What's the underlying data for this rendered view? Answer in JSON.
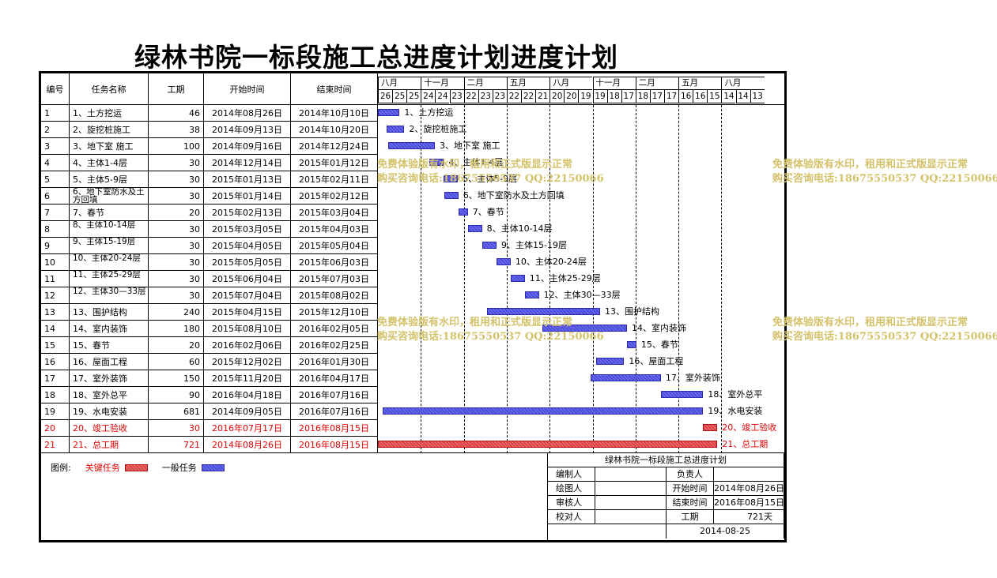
{
  "title": "绿林书院一标段施工总进度计划进度计划",
  "headers": {
    "id": "编号",
    "name": "任务名称",
    "duration": "工期",
    "start": "开始时间",
    "end": "结束时间"
  },
  "months": [
    "八月",
    "十一月",
    "二月",
    "五月",
    "八月",
    "十一月",
    "二月",
    "五月",
    "八月"
  ],
  "days": [
    "26",
    "25",
    "25",
    "24",
    "24",
    "23",
    "22",
    "23",
    "23",
    "22",
    "22",
    "21",
    "20",
    "20",
    "19",
    "19",
    "18",
    "17",
    "18",
    "17",
    "17",
    "16",
    "16",
    "15",
    "14",
    "14",
    "13"
  ],
  "tasks": [
    {
      "id": "1",
      "name": "1、土方挖运",
      "duration": "46",
      "start": "2014年08月26日",
      "end": "2014年10月10日",
      "label": "1、土方挖运",
      "bar_start_day": 0,
      "bar_days": 46,
      "critical": false
    },
    {
      "id": "2",
      "name": "2、旋挖桩施工",
      "duration": "38",
      "start": "2014年09月13日",
      "end": "2014年10月20日",
      "label": "2、旋挖桩施工",
      "bar_start_day": 18,
      "bar_days": 38,
      "critical": false
    },
    {
      "id": "3",
      "name": "3、地下室 施工",
      "duration": "100",
      "start": "2014年09月16日",
      "end": "2014年12月24日",
      "label": "3、地下室 施工",
      "bar_start_day": 21,
      "bar_days": 100,
      "critical": false
    },
    {
      "id": "4",
      "name": "4、主体1-4层",
      "duration": "30",
      "start": "2014年12月14日",
      "end": "2015年01月12日",
      "label": "4、主体1-4层",
      "bar_start_day": 110,
      "bar_days": 30,
      "critical": false
    },
    {
      "id": "5",
      "name": "5、主体5-9层",
      "duration": "30",
      "start": "2015年01月13日",
      "end": "2015年02月11日",
      "label": "5、主体5-9层",
      "bar_start_day": 140,
      "bar_days": 30,
      "critical": false
    },
    {
      "id": "6",
      "name": "6、地下室防水及土方回填",
      "duration": "30",
      "start": "2015年01月14日",
      "end": "2015年02月12日",
      "label": "6、地下室防水及土方回填",
      "bar_start_day": 141,
      "bar_days": 30,
      "critical": false
    },
    {
      "id": "7",
      "name": "7、春节",
      "duration": "20",
      "start": "2015年02月13日",
      "end": "2015年03月04日",
      "label": "7、春节",
      "bar_start_day": 171,
      "bar_days": 20,
      "critical": false
    },
    {
      "id": "8",
      "name": "8、主体10-14层",
      "duration": "30",
      "start": "2015年03月05日",
      "end": "2015年04月03日",
      "label": "8、主体10-14层",
      "bar_start_day": 191,
      "bar_days": 30,
      "critical": false
    },
    {
      "id": "9",
      "name": "9、主体15-19层",
      "duration": "30",
      "start": "2015年04月05日",
      "end": "2015年05月04日",
      "label": "9、主体15-19层",
      "bar_start_day": 222,
      "bar_days": 30,
      "critical": false
    },
    {
      "id": "10",
      "name": "10、主体20-24层",
      "duration": "30",
      "start": "2015年05月05日",
      "end": "2015年06月03日",
      "label": "10、主体20-24层",
      "bar_start_day": 252,
      "bar_days": 30,
      "critical": false
    },
    {
      "id": "11",
      "name": "11、主体25-29层",
      "duration": "30",
      "start": "2015年06月04日",
      "end": "2015年07月03日",
      "label": "11、主体25-29层",
      "bar_start_day": 282,
      "bar_days": 30,
      "critical": false
    },
    {
      "id": "12",
      "name": "12、主体30—33层",
      "duration": "30",
      "start": "2015年07月04日",
      "end": "2015年08月02日",
      "label": "12、主体30—33层",
      "bar_start_day": 312,
      "bar_days": 30,
      "critical": false
    },
    {
      "id": "13",
      "name": "13、围护结构",
      "duration": "240",
      "start": "2015年04月15日",
      "end": "2015年12月10日",
      "label": "13、围护结构",
      "bar_start_day": 232,
      "bar_days": 240,
      "critical": false
    },
    {
      "id": "14",
      "name": "14、室内装饰",
      "duration": "180",
      "start": "2015年08月10日",
      "end": "2016年02月05日",
      "label": "14、室内装饰",
      "bar_start_day": 349,
      "bar_days": 180,
      "critical": false
    },
    {
      "id": "15",
      "name": "15、春节",
      "duration": "20",
      "start": "2016年02月06日",
      "end": "2016年02月25日",
      "label": "15、春节",
      "bar_start_day": 529,
      "bar_days": 20,
      "critical": false
    },
    {
      "id": "16",
      "name": "16、屋面工程",
      "duration": "60",
      "start": "2015年12月02日",
      "end": "2016年01月30日",
      "label": "16、屋面工程",
      "bar_start_day": 463,
      "bar_days": 60,
      "critical": false
    },
    {
      "id": "17",
      "name": "17、室外装饰",
      "duration": "150",
      "start": "2015年11月20日",
      "end": "2016年04月17日",
      "label": "17、室外装饰",
      "bar_start_day": 451,
      "bar_days": 150,
      "critical": false
    },
    {
      "id": "18",
      "name": "18、室外总平",
      "duration": "90",
      "start": "2016年04月18日",
      "end": "2016年07月16日",
      "label": "18、室外总平",
      "bar_start_day": 601,
      "bar_days": 90,
      "critical": false
    },
    {
      "id": "19",
      "name": "19、水电安装",
      "duration": "681",
      "start": "2014年09月05日",
      "end": "2016年07月16日",
      "label": "19、水电安装",
      "bar_start_day": 10,
      "bar_days": 681,
      "critical": false
    },
    {
      "id": "20",
      "name": "20、竣工验收",
      "duration": "30",
      "start": "2016年07月17日",
      "end": "2016年08月15日",
      "label": "20、竣工验收",
      "bar_start_day": 691,
      "bar_days": 30,
      "critical": true
    },
    {
      "id": "21",
      "name": "21、总工期",
      "duration": "721",
      "start": "2014年08月26日",
      "end": "2016年08月15日",
      "label": "21、总工期",
      "bar_start_day": 0,
      "bar_days": 721,
      "critical": true
    }
  ],
  "watermark": {
    "line1": "免费体验版有水印，租用和正式版显示正常",
    "line2": "购买咨询电话:18675550537 QQ:22150066"
  },
  "legend": {
    "label": "图例:",
    "critical": "关键任务",
    "normal": "一般任务"
  },
  "info": {
    "title": "绿林书院一标段施工总进度计划",
    "editor_label": "编制人",
    "manager_label": "负责人",
    "drawer_label": "绘图人",
    "start_label": "开始时间",
    "start_value": "2014年08月26日",
    "reviewer_label": "审核人",
    "end_label": "结束时间",
    "end_value": "2016年08月15日",
    "checker_label": "校对人",
    "duration_label": "工期",
    "duration_value": "721天",
    "date": "2014-08-25"
  },
  "colors": {
    "normal_bar": "#4a4ae0",
    "critical_bar": "#e04040",
    "critical_text": "#e00000",
    "watermark": "#d4c26a"
  }
}
